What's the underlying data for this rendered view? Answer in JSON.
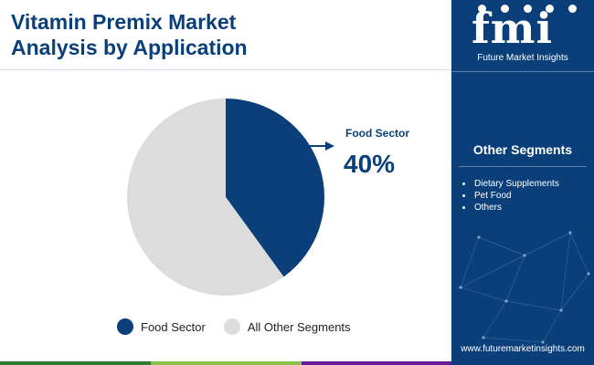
{
  "header": {
    "title_line1": "Vitamin Premix Market",
    "title_line2": "Analysis by Application"
  },
  "chart_data": {
    "type": "pie",
    "slices": [
      {
        "name": "Food Sector",
        "value": 40,
        "color": "#0a3f7a"
      },
      {
        "name": "All Other Segments",
        "value": 60,
        "color": "#dcdcdc"
      }
    ],
    "start": "12 o'clock",
    "direction": "clockwise",
    "callout": {
      "label": "Food Sector",
      "value": "40%"
    },
    "legend": {
      "placement": "bottom",
      "entries": [
        "Food Sector",
        "All Other Segments"
      ]
    }
  },
  "sidebar": {
    "logo_text": "fmi",
    "logo_subtitle": "Future Market Insights",
    "other_heading": "Other Segments",
    "other_items": [
      "Dietary Supplements",
      "Pet Food",
      "Others"
    ],
    "website": "www.futuremarketinsights.com"
  },
  "colors": {
    "brand": "#0a3f7a",
    "other_slice": "#dcdcdc",
    "bottom_bar": [
      "#2e7d32",
      "#8bc34a",
      "#6a1b9a",
      "#0a3f7a"
    ]
  }
}
